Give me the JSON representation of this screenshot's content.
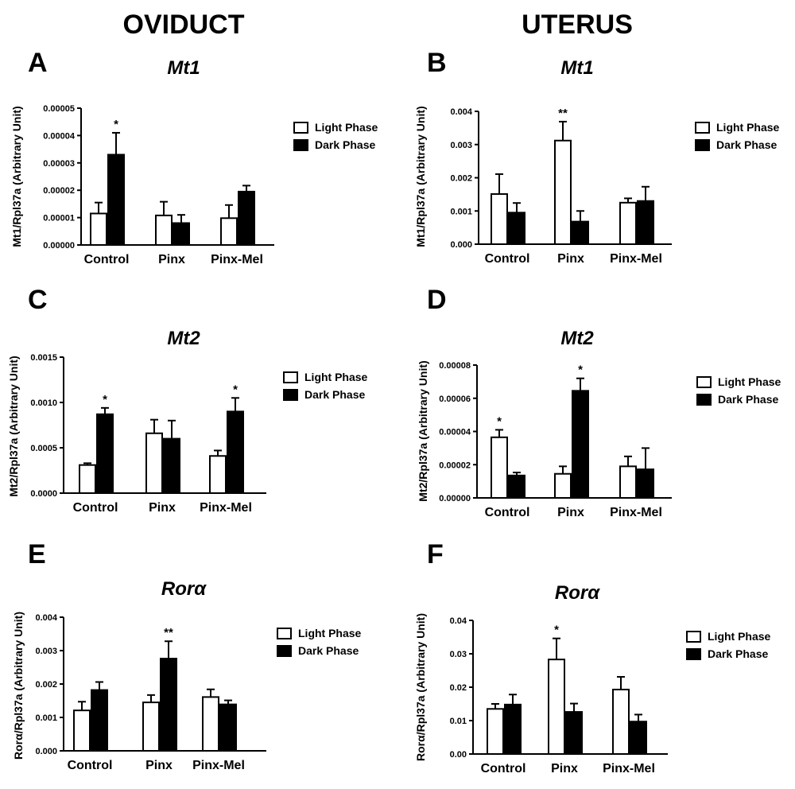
{
  "figure": {
    "column_headers": [
      "OVIDUCT",
      "UTERUS"
    ],
    "legend": [
      "Light Phase",
      "Dark Phase"
    ],
    "colors": {
      "light": "#ffffff",
      "dark": "#000000",
      "stroke": "#000000"
    }
  },
  "chart_data": [
    {
      "type": "bar",
      "letter": "A",
      "title": "Mt1",
      "ylabel": "Mt1/Rpl37a (Arbitrary Unit)",
      "categories": [
        "Control",
        "Pinx",
        "Pinx-Mel"
      ],
      "ylim": [
        0,
        5e-05
      ],
      "yticks": [
        "0.00000",
        "0.00001",
        "0.00002",
        "0.00003",
        "0.00004",
        "0.00005"
      ],
      "series": [
        {
          "name": "Light Phase",
          "values": [
            1.15e-05,
            1.08e-05,
            9.8e-06
          ],
          "errors": [
            4e-06,
            5e-06,
            4.8e-06
          ],
          "sig": [
            "",
            "",
            ""
          ]
        },
        {
          "name": "Dark Phase",
          "values": [
            3.3e-05,
            8e-06,
            1.95e-05
          ],
          "errors": [
            8e-06,
            3e-06,
            2.2e-06
          ],
          "sig": [
            "*",
            "",
            ""
          ]
        }
      ]
    },
    {
      "type": "bar",
      "letter": "B",
      "title": "Mt1",
      "ylabel": "Mt1/Rpl37a (Arbitrary Unit)",
      "categories": [
        "Control",
        "Pinx",
        "Pinx-Mel"
      ],
      "ylim": [
        0,
        0.004
      ],
      "yticks": [
        "0.000",
        "0.001",
        "0.002",
        "0.003",
        "0.004"
      ],
      "series": [
        {
          "name": "Light Phase",
          "values": [
            0.00151,
            0.00312,
            0.00125
          ],
          "errors": [
            0.0006,
            0.00057,
            0.00013
          ],
          "sig": [
            "",
            "**",
            ""
          ]
        },
        {
          "name": "Dark Phase",
          "values": [
            0.00095,
            0.00068,
            0.0013
          ],
          "errors": [
            0.00029,
            0.00032,
            0.00043
          ],
          "sig": [
            "",
            "",
            ""
          ]
        }
      ]
    },
    {
      "type": "bar",
      "letter": "C",
      "title": "Mt2",
      "ylabel": "Mt2/Rpl37a (Arbitrary Unit)",
      "categories": [
        "Control",
        "Pinx",
        "Pinx-Mel"
      ],
      "ylim": [
        0,
        0.0015
      ],
      "yticks": [
        "0.0000",
        "0.0005",
        "0.0010",
        "0.0015"
      ],
      "series": [
        {
          "name": "Light Phase",
          "values": [
            0.00031,
            0.00066,
            0.00041
          ],
          "errors": [
            2e-05,
            0.00015,
            6e-05
          ],
          "sig": [
            "",
            "",
            ""
          ]
        },
        {
          "name": "Dark Phase",
          "values": [
            0.00087,
            0.0006,
            0.0009
          ],
          "errors": [
            7e-05,
            0.0002,
            0.00015
          ],
          "sig": [
            "*",
            "",
            "*"
          ]
        }
      ]
    },
    {
      "type": "bar",
      "letter": "D",
      "title": "Mt2",
      "ylabel": "Mt2/Rpl37a (Arbitrary Unit)",
      "categories": [
        "Control",
        "Pinx",
        "Pinx-Mel"
      ],
      "ylim": [
        0,
        8e-05
      ],
      "yticks": [
        "0.00000",
        "0.00002",
        "0.00004",
        "0.00006",
        "0.00008"
      ],
      "series": [
        {
          "name": "Light Phase",
          "values": [
            3.65e-05,
            1.45e-05,
            1.9e-05
          ],
          "errors": [
            4.5e-06,
            4.5e-06,
            6e-06
          ],
          "sig": [
            "*",
            "",
            ""
          ]
        },
        {
          "name": "Dark Phase",
          "values": [
            1.35e-05,
            6.45e-05,
            1.72e-05
          ],
          "errors": [
            1.8e-06,
            7.5e-06,
            1.28e-05
          ],
          "sig": [
            "",
            "*",
            ""
          ]
        }
      ]
    },
    {
      "type": "bar",
      "letter": "E",
      "title": "Rorα",
      "ylabel": "Rorα/Rpl37a (Arbitrary Unit)",
      "categories": [
        "Control",
        "Pinx",
        "Pinx-Mel"
      ],
      "ylim": [
        0,
        0.004
      ],
      "yticks": [
        "0.000",
        "0.001",
        "0.002",
        "0.003",
        "0.004"
      ],
      "series": [
        {
          "name": "Light Phase",
          "values": [
            0.00121,
            0.00145,
            0.00161
          ],
          "errors": [
            0.00026,
            0.00022,
            0.00023
          ],
          "sig": [
            "",
            "",
            ""
          ]
        },
        {
          "name": "Dark Phase",
          "values": [
            0.00182,
            0.00276,
            0.00139
          ],
          "errors": [
            0.00024,
            0.00052,
            0.00012
          ],
          "sig": [
            "",
            "**",
            ""
          ]
        }
      ]
    },
    {
      "type": "bar",
      "letter": "F",
      "title": "Rorα",
      "ylabel": "Rorα/Rpl37a (Arbitrary Unit)",
      "categories": [
        "Control",
        "Pinx",
        "Pinx-Mel"
      ],
      "ylim": [
        0,
        0.04
      ],
      "yticks": [
        "0.00",
        "0.01",
        "0.02",
        "0.03",
        "0.04"
      ],
      "series": [
        {
          "name": "Light Phase",
          "values": [
            0.0135,
            0.0283,
            0.0193
          ],
          "errors": [
            0.0015,
            0.0063,
            0.0038
          ],
          "sig": [
            "",
            "*",
            ""
          ]
        },
        {
          "name": "Dark Phase",
          "values": [
            0.0148,
            0.0126,
            0.0097
          ],
          "errors": [
            0.003,
            0.0025,
            0.0021
          ],
          "sig": [
            "",
            "",
            ""
          ]
        }
      ]
    }
  ]
}
